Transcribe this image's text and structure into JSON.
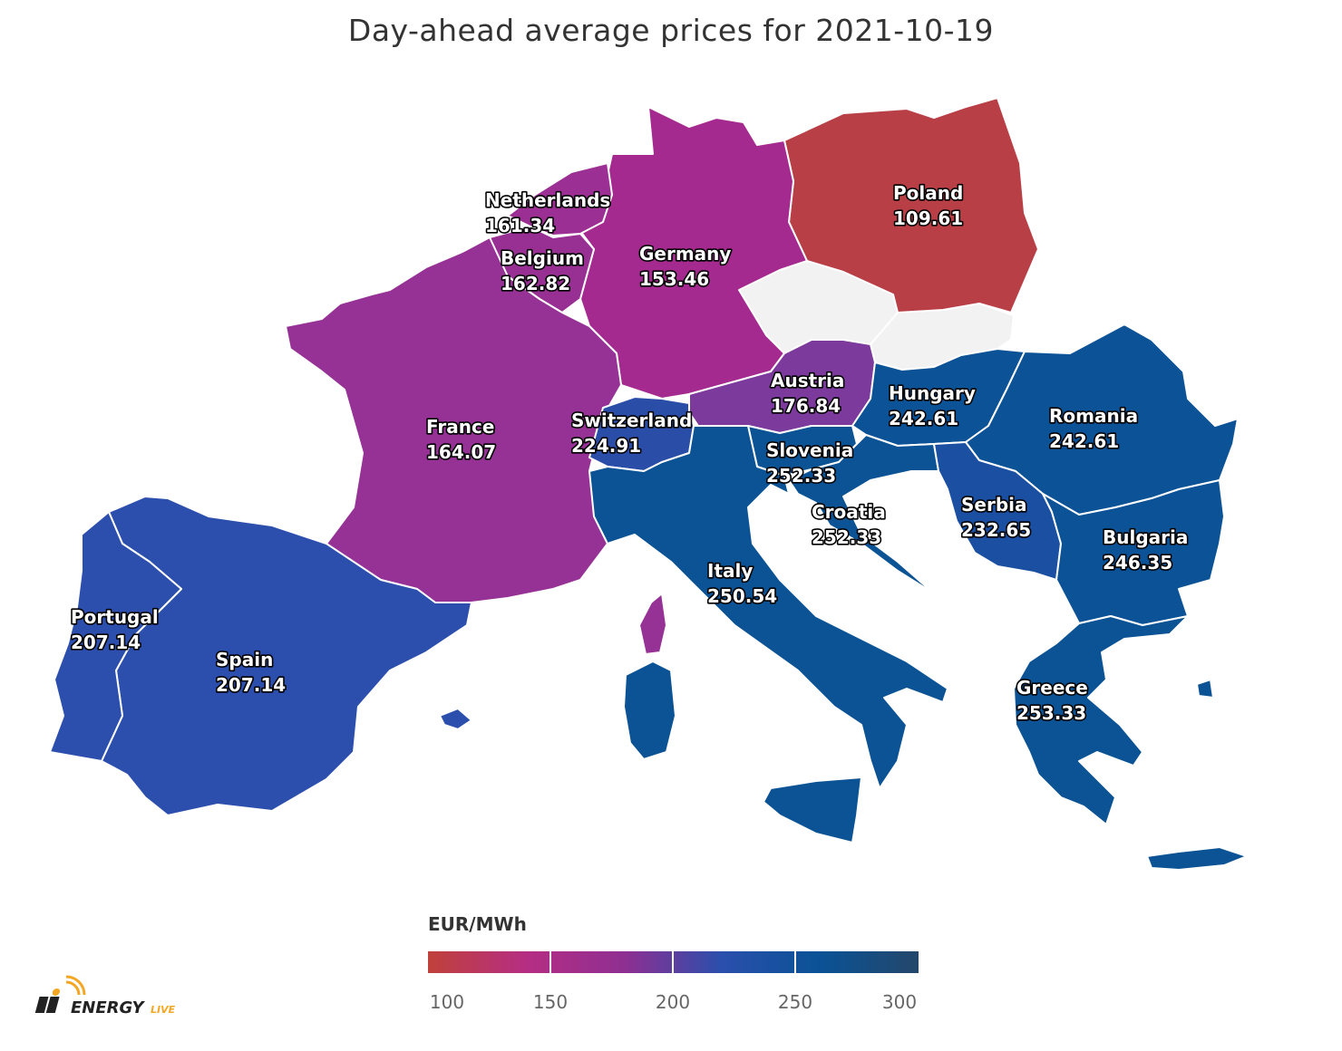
{
  "title": "Day-ahead average prices for 2021-10-19",
  "legend": {
    "title": "EUR/MWh",
    "ticks": [
      "100",
      "150",
      "200",
      "250",
      "300"
    ],
    "stops": [
      "#c0413a",
      "#b52e83",
      "#8f2f92",
      "#2a4fac",
      "#0a5295",
      "#24476b"
    ]
  },
  "countries": [
    {
      "id": "poland",
      "name": "Poland",
      "value": "109.61",
      "color": "#b93f46"
    },
    {
      "id": "germany",
      "name": "Germany",
      "value": "153.46",
      "color": "#a52a8f"
    },
    {
      "id": "netherlands",
      "name": "Netherlands",
      "value": "161.34",
      "color": "#9c2f93"
    },
    {
      "id": "belgium",
      "name": "Belgium",
      "value": "162.82",
      "color": "#983094"
    },
    {
      "id": "france",
      "name": "France",
      "value": "164.07",
      "color": "#963195"
    },
    {
      "id": "austria",
      "name": "Austria",
      "value": "176.84",
      "color": "#7b3a9c"
    },
    {
      "id": "switzerland",
      "name": "Switzerland",
      "value": "224.91",
      "color": "#2a4da8"
    },
    {
      "id": "portugal",
      "name": "Portugal",
      "value": "207.14",
      "color": "#2c4fae"
    },
    {
      "id": "spain",
      "name": "Spain",
      "value": "207.14",
      "color": "#2c4fae"
    },
    {
      "id": "slovenia",
      "name": "Slovenia",
      "value": "252.33",
      "color": "#0b5394"
    },
    {
      "id": "croatia",
      "name": "Croatia",
      "value": "252.33",
      "color": "#0b5394"
    },
    {
      "id": "hungary",
      "name": "Hungary",
      "value": "242.61",
      "color": "#0c5296"
    },
    {
      "id": "romania",
      "name": "Romania",
      "value": "242.61",
      "color": "#0c5296"
    },
    {
      "id": "serbia",
      "name": "Serbia",
      "value": "232.65",
      "color": "#1a4fa2"
    },
    {
      "id": "bulgaria",
      "name": "Bulgaria",
      "value": "246.35",
      "color": "#0c5296"
    },
    {
      "id": "italy",
      "name": "Italy",
      "value": "250.54",
      "color": "#0b5394"
    },
    {
      "id": "greece",
      "name": "Greece",
      "value": "253.33",
      "color": "#0b5394"
    }
  ],
  "no_data_color": "#f2f2f2",
  "logo": {
    "text_main": "ENERGY",
    "text_sub": "LIVE"
  }
}
